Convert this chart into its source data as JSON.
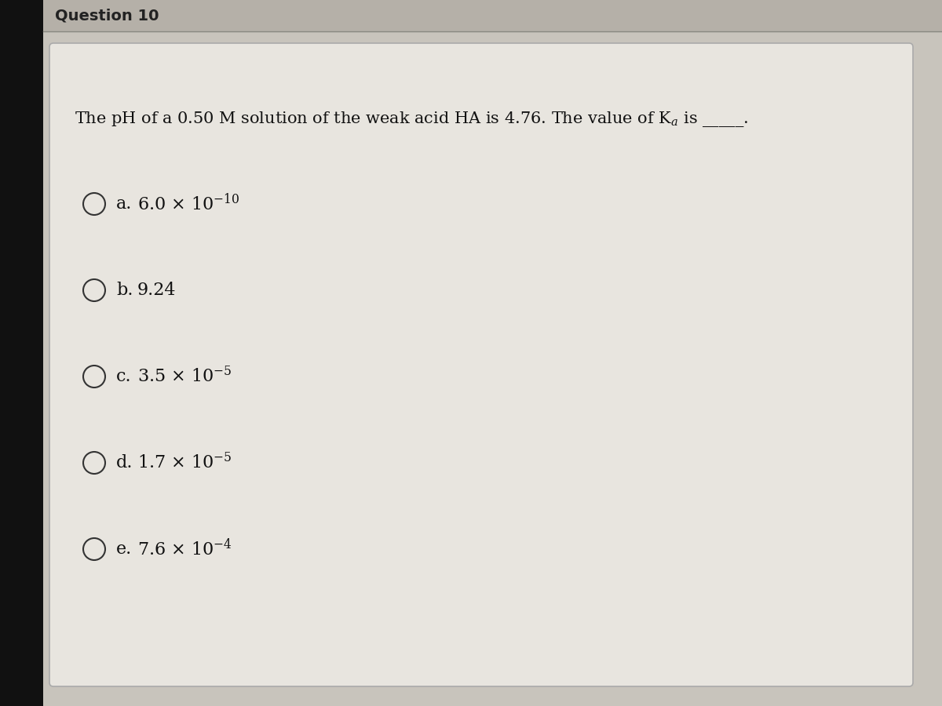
{
  "outer_bg_color": "#1a1a1a",
  "header_bg_color": "#b0aca4",
  "panel_bg_color": "#e8e5df",
  "left_bar_color": "#111111",
  "title": "Question 10",
  "title_color": "#222222",
  "title_fontsize": 14,
  "question_text": "The pH of a 0.50 M solution of the weak acid HA is 4.76. The value of K$_a$ is _____.",
  "question_fontsize": 15,
  "question_color": "#111111",
  "options": [
    {
      "letter": "a",
      "text": "6.0 × 10$^{-10}$"
    },
    {
      "letter": "b",
      "text": "9.24"
    },
    {
      "letter": "c",
      "text": "3.5 × 10$^{-5}$"
    },
    {
      "letter": "d",
      "text": "1.7 × 10$^{-5}$"
    },
    {
      "letter": "e",
      "text": "7.6 × 10$^{-4}$"
    }
  ],
  "option_fontsize": 16,
  "option_color": "#111111",
  "circle_color": "#333333",
  "circle_linewidth": 1.5
}
